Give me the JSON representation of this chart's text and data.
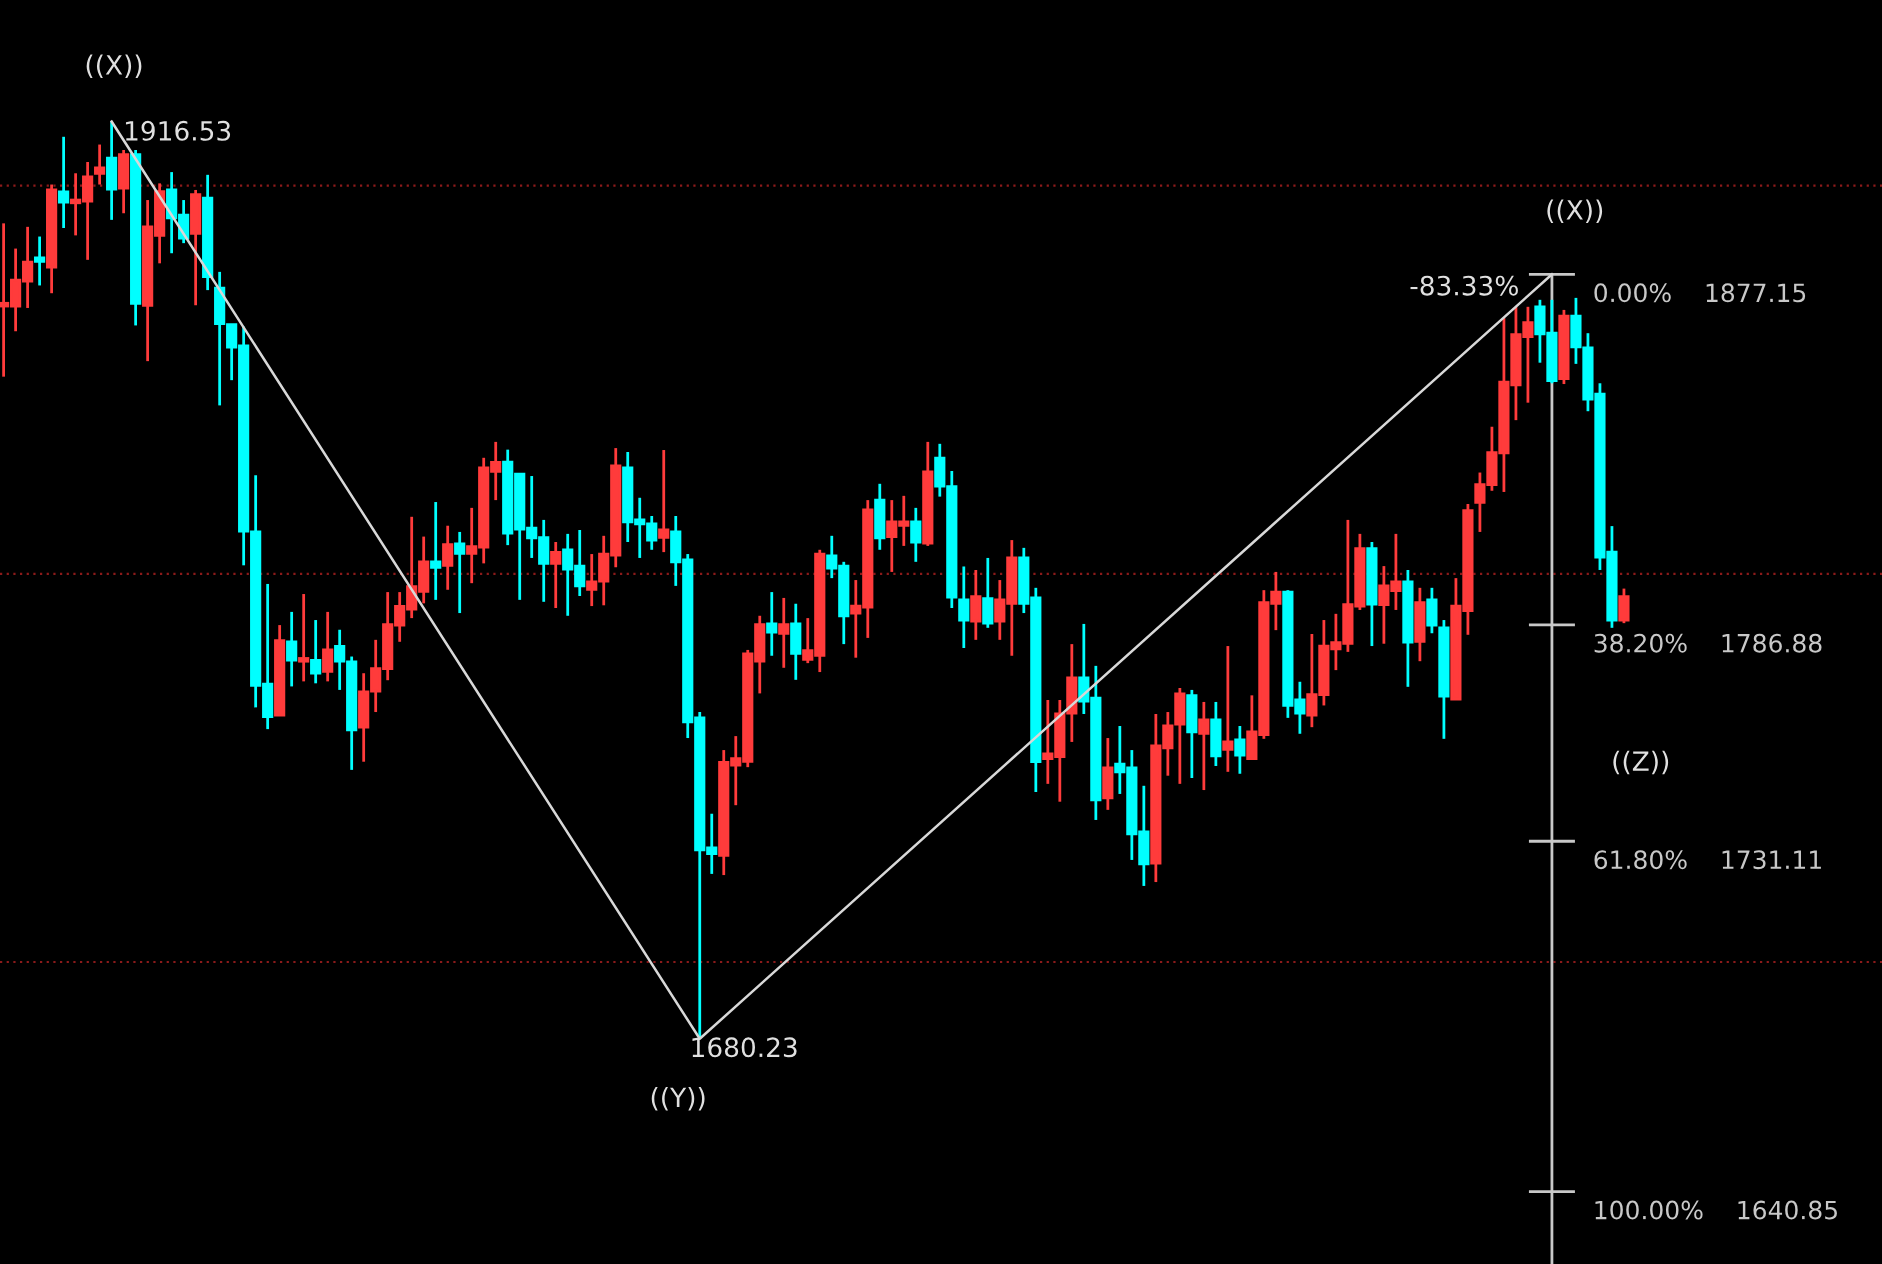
{
  "chart_data": {
    "type": "candlestick",
    "categories": [
      null,
      null,
      null,
      null,
      null,
      null,
      null,
      null,
      null,
      null,
      null,
      null,
      null,
      null,
      null,
      null,
      null,
      null,
      null,
      null,
      null,
      null,
      null,
      null,
      null,
      null,
      null,
      null,
      null,
      null,
      null,
      null,
      null,
      null,
      null,
      null,
      null,
      null,
      null,
      null,
      null,
      null,
      null,
      null,
      null,
      null,
      null,
      null,
      null,
      null,
      null,
      null,
      null,
      null,
      null,
      null,
      null,
      null,
      null,
      null,
      null,
      null,
      null,
      null,
      null,
      null,
      null,
      null,
      null,
      null,
      null,
      null,
      null,
      null,
      null,
      null,
      null,
      null,
      null,
      null,
      null,
      null,
      null,
      null,
      null,
      null,
      null,
      null,
      null,
      null,
      null,
      null,
      null,
      null,
      null,
      null,
      null,
      null,
      null,
      null,
      null,
      null,
      null,
      null,
      null,
      null,
      null,
      null,
      null,
      null,
      null,
      null,
      null,
      null,
      null,
      null,
      null,
      null,
      null,
      null,
      null,
      null,
      null,
      null,
      null,
      null,
      null,
      null,
      null,
      null,
      null,
      null,
      null,
      null,
      null,
      null
    ],
    "ohlc": [
      [
        1869,
        1890.3,
        1850.8,
        1869.7
      ],
      [
        1869,
        1883.8,
        1862.5,
        1875.7
      ],
      [
        1875.4,
        1889.4,
        1868.5,
        1880.3
      ],
      [
        1881.4,
        1886.9,
        1874.3,
        1880.5
      ],
      [
        1879,
        1900.3,
        1872.3,
        1898.9
      ],
      [
        1898.4,
        1912.6,
        1889.1,
        1895.8
      ],
      [
        1895.6,
        1903.2,
        1887.2,
        1896.3
      ],
      [
        1896,
        1906.1,
        1880.9,
        1902.3
      ],
      [
        1903.2,
        1910.6,
        1900.3,
        1904.6
      ],
      [
        1907.1,
        1916.53,
        1891.2,
        1899.1
      ],
      [
        1899.4,
        1909.2,
        1892.9,
        1908
      ],
      [
        1908,
        1909.2,
        1864,
        1869.7
      ],
      [
        1869.2,
        1896.3,
        1854.8,
        1889.4
      ],
      [
        1887.2,
        1900.6,
        1880,
        1898.5
      ],
      [
        1898.9,
        1903.5,
        1882.6,
        1891.7
      ],
      [
        1892.4,
        1896.3,
        1885.2,
        1886.5
      ],
      [
        1887.7,
        1898.9,
        1869.2,
        1897.7
      ],
      [
        1896.8,
        1902.8,
        1873.1,
        1876.6
      ],
      [
        1873.6,
        1877.8,
        1843.4,
        1864.5
      ],
      [
        1864.2,
        1864.2,
        1849.9,
        1858.4
      ],
      [
        1858.7,
        1863.7,
        1802.2,
        1811
      ],
      [
        1810.8,
        1825.4,
        1765.6,
        1771.3
      ],
      [
        1771.6,
        1797.4,
        1760,
        1763.2
      ],
      [
        1763.6,
        1786.8,
        1763.6,
        1782.8
      ],
      [
        1782.5,
        1790.2,
        1771,
        1777.8
      ],
      [
        1777.5,
        1794.8,
        1772.3,
        1778.2
      ],
      [
        1777.7,
        1788.1,
        1771.8,
        1774.4
      ],
      [
        1774.9,
        1790.2,
        1772.3,
        1780.4
      ],
      [
        1781.3,
        1785.6,
        1770.1,
        1777.5
      ],
      [
        1777.3,
        1778.7,
        1749.5,
        1759.8
      ],
      [
        1760.5,
        1774.4,
        1751.6,
        1769.6
      ],
      [
        1769.8,
        1783,
        1764.4,
        1775.6
      ],
      [
        1775.6,
        1795.3,
        1772.6,
        1786.9
      ],
      [
        1786.8,
        1795.3,
        1782.5,
        1791.6
      ],
      [
        1790.9,
        1814.7,
        1788.6,
        1796.7
      ],
      [
        1795.5,
        1809.6,
        1792.4,
        1803.1
      ],
      [
        1803.1,
        1818.5,
        1793.3,
        1801.7
      ],
      [
        1802.2,
        1812.4,
        1795.9,
        1807.5
      ],
      [
        1807.7,
        1810.8,
        1789.9,
        1805.3
      ],
      [
        1805.3,
        1817,
        1797.6,
        1807
      ],
      [
        1806.9,
        1829.9,
        1802.7,
        1827.3
      ],
      [
        1826.4,
        1834,
        1819,
        1828.7
      ],
      [
        1828.8,
        1832,
        1807.4,
        1810.5
      ],
      [
        1825.7,
        1825.7,
        1793.3,
        1811.5
      ],
      [
        1811.8,
        1825.2,
        1804.1,
        1809.3
      ],
      [
        1809.3,
        1813.9,
        1792.8,
        1802.7
      ],
      [
        1802.7,
        1808.2,
        1791.2,
        1805.5
      ],
      [
        1806.2,
        1810.3,
        1789.2,
        1801.2
      ],
      [
        1802,
        1811.3,
        1794.3,
        1796.9
      ],
      [
        1796,
        1805.1,
        1791.7,
        1797.9
      ],
      [
        1798.1,
        1809.8,
        1791.9,
        1805.1
      ],
      [
        1804.8,
        1832.4,
        1801.7,
        1827.8
      ],
      [
        1827.3,
        1831.4,
        1808.2,
        1813.4
      ],
      [
        1813.9,
        1819.6,
        1804.1,
        1812.9
      ],
      [
        1812.9,
        1814.9,
        1806.2,
        1808.7
      ],
      [
        1809.4,
        1831.9,
        1805.6,
        1811.3
      ],
      [
        1810.8,
        1814.9,
        1796.9,
        1803.1
      ],
      [
        1803.6,
        1805.1,
        1757.7,
        1761.9
      ],
      [
        1762.9,
        1764.4,
        1680.23,
        1728.9
      ],
      [
        1729.4,
        1738.2,
        1722.7,
        1727.9
      ],
      [
        1727.5,
        1754.6,
        1722.4,
        1751.4
      ],
      [
        1750.7,
        1758.2,
        1740.4,
        1752.4
      ],
      [
        1751.7,
        1780.4,
        1750.2,
        1779.4
      ],
      [
        1777.5,
        1789.2,
        1769.2,
        1786.9
      ],
      [
        1787.1,
        1795.3,
        1778.9,
        1785
      ],
      [
        1784.7,
        1793.8,
        1775.8,
        1786.9
      ],
      [
        1787.1,
        1792.3,
        1772.7,
        1779.5
      ],
      [
        1778,
        1788.6,
        1777,
        1780.2
      ],
      [
        1779,
        1806.2,
        1774.7,
        1805.1
      ],
      [
        1804.6,
        1809.8,
        1798.9,
        1801.5
      ],
      [
        1802,
        1803.1,
        1781.9,
        1789.2
      ],
      [
        1789.9,
        1798.4,
        1778.4,
        1791.7
      ],
      [
        1791.4,
        1819,
        1783.5,
        1816.5
      ],
      [
        1819,
        1823.2,
        1806.2,
        1809.3
      ],
      [
        1809.6,
        1819,
        1800.5,
        1813.4
      ],
      [
        1812.5,
        1820.1,
        1807.2,
        1813.4
      ],
      [
        1813.4,
        1817,
        1803.1,
        1808.2
      ],
      [
        1807.9,
        1834,
        1807.2,
        1826.3
      ],
      [
        1829.8,
        1833.5,
        1819.9,
        1822.6
      ],
      [
        1822.5,
        1826.5,
        1791.2,
        1794
      ],
      [
        1793.3,
        1801.9,
        1780.9,
        1788.1
      ],
      [
        1787.8,
        1801,
        1783,
        1794.1
      ],
      [
        1793.6,
        1804.1,
        1786.1,
        1787.3
      ],
      [
        1787.8,
        1798.4,
        1783,
        1793.3
      ],
      [
        1792.4,
        1808.7,
        1778.9,
        1804.1
      ],
      [
        1804.1,
        1806.7,
        1789.9,
        1792.4
      ],
      [
        1793.8,
        1796.4,
        1743.8,
        1751.6
      ],
      [
        1752.4,
        1767.5,
        1745.9,
        1753.6
      ],
      [
        1752.9,
        1767.5,
        1741.3,
        1763.9
      ],
      [
        1764.1,
        1781.9,
        1756.7,
        1773.2
      ],
      [
        1773.2,
        1787.1,
        1763.9,
        1767.2
      ],
      [
        1768,
        1776.3,
        1736.6,
        1741.8
      ],
      [
        1742.3,
        1757.7,
        1739.2,
        1750
      ],
      [
        1751,
        1760.8,
        1743.3,
        1749
      ],
      [
        1750,
        1754.6,
        1726.3,
        1733
      ],
      [
        1733.5,
        1745.4,
        1719.6,
        1725.3
      ],
      [
        1725.5,
        1763.9,
        1720.6,
        1755.7
      ],
      [
        1755.2,
        1764.4,
        1748,
        1760.8
      ],
      [
        1761.3,
        1770.6,
        1745.9,
        1769.1
      ],
      [
        1768.6,
        1770.1,
        1747.4,
        1759.3
      ],
      [
        1758.9,
        1767,
        1744.3,
        1762.4
      ],
      [
        1762.4,
        1767,
        1750.5,
        1753.1
      ],
      [
        1754.8,
        1781.4,
        1749,
        1756.7
      ],
      [
        1757.2,
        1760.8,
        1748.5,
        1753.3
      ],
      [
        1752.4,
        1768.7,
        1752.4,
        1759.3
      ],
      [
        1758.6,
        1795.8,
        1757.5,
        1792.6
      ],
      [
        1792.4,
        1800.5,
        1785.5,
        1795.3
      ],
      [
        1795.3,
        1795.8,
        1762.9,
        1766.1
      ],
      [
        1767.5,
        1772.2,
        1758.8,
        1764.1
      ],
      [
        1763.6,
        1784.5,
        1760.5,
        1768.9
      ],
      [
        1768.9,
        1788.1,
        1766.1,
        1781.4
      ],
      [
        1780.7,
        1789.7,
        1775.2,
        1782.3
      ],
      [
        1782.1,
        1813.9,
        1779.9,
        1792.1
      ],
      [
        1791.7,
        1810.3,
        1790.7,
        1806.5
      ],
      [
        1806.5,
        1808.2,
        1781.4,
        1792.2
      ],
      [
        1792.1,
        1802,
        1782,
        1796.9
      ],
      [
        1795.7,
        1810.3,
        1790.7,
        1797.9
      ],
      [
        1797.9,
        1801,
        1770.9,
        1782.4
      ],
      [
        1782.6,
        1796.4,
        1777.5,
        1792.6
      ],
      [
        1793.3,
        1796.4,
        1784.7,
        1786.8
      ],
      [
        1786.1,
        1788.1,
        1757.5,
        1768.5
      ],
      [
        1767.7,
        1798.9,
        1767.7,
        1791.7
      ],
      [
        1790.5,
        1818,
        1784.3,
        1816.3
      ],
      [
        1818.4,
        1826.1,
        1810.8,
        1823
      ],
      [
        1823,
        1837.9,
        1821.4,
        1831.2
      ],
      [
        1831.2,
        1865.9,
        1821.1,
        1849.4
      ],
      [
        1848.7,
        1868.8,
        1839.6,
        1861.6
      ],
      [
        1861.1,
        1868.8,
        1844.1,
        1864.7
      ],
      [
        1868.8,
        1870.6,
        1854.4,
        1861.8
      ],
      [
        1862,
        1870.6,
        1849.1,
        1849.8
      ],
      [
        1850.3,
        1868,
        1848.9,
        1866.4
      ],
      [
        1866.4,
        1871.1,
        1854.1,
        1858.5
      ],
      [
        1858.2,
        1862,
        1841.9,
        1845
      ],
      [
        1846.3,
        1849.1,
        1801,
        1804.3
      ],
      [
        1805.6,
        1812.3,
        1786.1,
        1788.1
      ],
      [
        1788.1,
        1796.2,
        1787.3,
        1794.1
      ]
    ],
    "colors": [
      "#ff3b3b",
      "#ff3b3b",
      "#ff3b3b",
      "#00ffff",
      "#ff3b3b",
      "#00ffff",
      "#ff3b3b",
      "#ff3b3b",
      "#ff3b3b",
      "#00ffff",
      "#ff3b3b",
      "#00ffff",
      "#ff3b3b",
      "#ff3b3b",
      "#00ffff",
      "#00ffff",
      "#ff3b3b",
      "#00ffff",
      "#00ffff",
      "#00ffff",
      "#00ffff",
      "#00ffff",
      "#00ffff",
      "#ff3b3b",
      "#00ffff",
      "#ff3b3b",
      "#00ffff",
      "#ff3b3b",
      "#00ffff",
      "#00ffff",
      "#ff3b3b",
      "#ff3b3b",
      "#ff3b3b",
      "#ff3b3b",
      "#ff3b3b",
      "#ff3b3b",
      "#00ffff",
      "#ff3b3b",
      "#00ffff",
      "#ff3b3b",
      "#ff3b3b",
      "#ff3b3b",
      "#00ffff",
      "#00ffff",
      "#00ffff",
      "#00ffff",
      "#ff3b3b",
      "#00ffff",
      "#00ffff",
      "#ff3b3b",
      "#ff3b3b",
      "#ff3b3b",
      "#00ffff",
      "#00ffff",
      "#00ffff",
      "#ff3b3b",
      "#00ffff",
      "#00ffff",
      "#00ffff",
      "#00ffff",
      "#ff3b3b",
      "#ff3b3b",
      "#ff3b3b",
      "#ff3b3b",
      "#00ffff",
      "#ff3b3b",
      "#00ffff",
      "#ff3b3b",
      "#ff3b3b",
      "#00ffff",
      "#00ffff",
      "#ff3b3b",
      "#ff3b3b",
      "#00ffff",
      "#ff3b3b",
      "#ff3b3b",
      "#00ffff",
      "#ff3b3b",
      "#00ffff",
      "#00ffff",
      "#00ffff",
      "#ff3b3b",
      "#00ffff",
      "#ff3b3b",
      "#ff3b3b",
      "#00ffff",
      "#00ffff",
      "#ff3b3b",
      "#ff3b3b",
      "#ff3b3b",
      "#00ffff",
      "#00ffff",
      "#ff3b3b",
      "#00ffff",
      "#00ffff",
      "#00ffff",
      "#ff3b3b",
      "#ff3b3b",
      "#ff3b3b",
      "#00ffff",
      "#ff3b3b",
      "#00ffff",
      "#ff3b3b",
      "#00ffff",
      "#ff3b3b",
      "#ff3b3b",
      "#ff3b3b",
      "#00ffff",
      "#00ffff",
      "#ff3b3b",
      "#ff3b3b",
      "#ff3b3b",
      "#ff3b3b",
      "#ff3b3b",
      "#00ffff",
      "#ff3b3b",
      "#ff3b3b",
      "#00ffff",
      "#ff3b3b",
      "#00ffff",
      "#00ffff",
      "#ff3b3b",
      "#ff3b3b",
      "#ff3b3b",
      "#ff3b3b",
      "#ff3b3b",
      "#ff3b3b",
      "#ff3b3b",
      "#00ffff",
      "#00ffff",
      "#ff3b3b",
      "#00ffff",
      "#00ffff",
      "#00ffff",
      "#00ffff",
      "#ff3b3b"
    ],
    "series": [
      {
        "type": "line",
        "values": [
          null,
          null,
          null,
          null,
          null,
          null,
          null,
          null,
          null,
          1916.53,
          null,
          null,
          null,
          null,
          null,
          null,
          null,
          null,
          null,
          null,
          null,
          null,
          null,
          null,
          null,
          null,
          null,
          null,
          null,
          null,
          null,
          null,
          null,
          null,
          null,
          null,
          null,
          null,
          null,
          null,
          null,
          null,
          null,
          null,
          null,
          null,
          null,
          null,
          null,
          null,
          null,
          null,
          null,
          null,
          null,
          null,
          null,
          null,
          1680.23,
          null,
          null,
          null,
          null,
          null,
          null,
          null,
          null,
          null,
          null,
          null,
          null,
          null,
          null,
          null,
          null,
          null,
          null,
          null,
          null,
          null,
          null,
          null,
          null,
          null,
          null,
          null,
          null,
          null,
          null,
          null,
          null,
          null,
          null,
          null,
          null,
          null,
          null,
          null,
          null,
          null,
          null,
          null,
          null,
          null,
          null,
          null,
          null,
          null,
          null,
          null,
          null,
          null,
          null,
          null,
          null,
          null,
          null,
          null,
          null,
          null,
          null,
          null,
          null,
          null,
          null,
          null,
          null,
          null,
          null,
          1877.15,
          null,
          null,
          null,
          null,
          null,
          null
        ],
        "color": "#d8d8d8"
      }
    ],
    "ylim": [
      1622.2,
      1947.84
    ],
    "yticks": [
      {
        "value": 1700,
        "label": null
      },
      {
        "value": 1800,
        "label": null
      },
      {
        "value": 1900,
        "label": null
      }
    ],
    "grid": "y",
    "ref_lines": [
      {
        "axis": "y",
        "value": 1877.15,
        "label": "0.00%    1877.15",
        "color": "#c8c8c8"
      },
      {
        "axis": "y",
        "value": 1786.88,
        "label": "38.20%    1786.88",
        "color": "#c8c8c8"
      },
      {
        "axis": "y",
        "value": 1731.11,
        "label": "61.80%    1731.11",
        "color": "#c8c8c8"
      },
      {
        "axis": "y",
        "value": 1640.85,
        "label": "100.00%    1640.85",
        "color": "#c8c8c8"
      }
    ],
    "annotations": [
      "((X))",
      "1916.53",
      "1680.23",
      "((Y))",
      "((X))",
      "-83.33%",
      "((Z))"
    ]
  }
}
